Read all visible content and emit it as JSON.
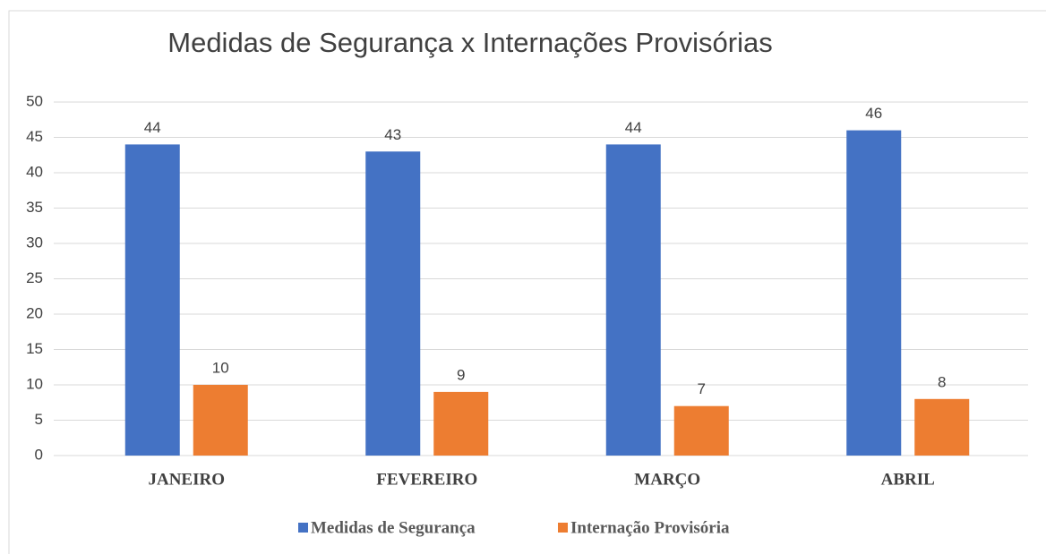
{
  "chart_data": {
    "type": "bar",
    "title": "Medidas de Segurança x Internações Provisórias",
    "categories": [
      "JANEIRO",
      "FEVEREIRO",
      "MARÇO",
      "ABRIL"
    ],
    "series": [
      {
        "name": "Medidas de Segurança",
        "color": "#4472c4",
        "values": [
          44,
          43,
          44,
          46
        ]
      },
      {
        "name": "Internação Provisória",
        "color": "#ed7d31",
        "values": [
          10,
          9,
          7,
          8
        ]
      }
    ],
    "ylim": [
      0,
      50
    ],
    "yticks": [
      0,
      5,
      10,
      15,
      20,
      25,
      30,
      35,
      40,
      45,
      50
    ],
    "grid": true,
    "legend": "bottom"
  }
}
